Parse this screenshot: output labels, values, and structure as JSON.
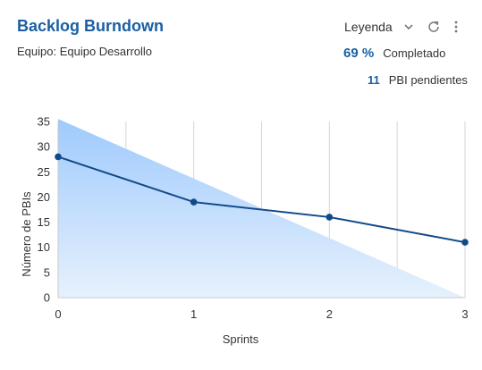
{
  "header": {
    "title": "Backlog Burndown",
    "subtitle": "Equipo: Equipo Desarrollo",
    "legend_label": "Leyenda"
  },
  "stats": {
    "completed_value": "69 %",
    "completed_label": "Completado",
    "pending_value": "11",
    "pending_label": "PBI pendientes"
  },
  "icons": {
    "legend_chevron": "chevron-down-icon",
    "refresh": "refresh-icon",
    "more": "more-vertical-icon"
  },
  "colors": {
    "accent": "#1b5fa3",
    "series_line": "#114a8b",
    "ideal_fill_top": "#9fcafd",
    "ideal_fill_bottom": "#e6f1fd",
    "grid": "#d6d6d6"
  },
  "chart_data": {
    "type": "line",
    "xlabel": "Sprints",
    "ylabel": "Número de PBIs",
    "x_ticks": [
      0,
      1,
      2,
      3
    ],
    "y_ticks": [
      0,
      5,
      10,
      15,
      20,
      25,
      30,
      35
    ],
    "xlim": [
      0,
      3
    ],
    "ylim": [
      0,
      35
    ],
    "grid": "vertical",
    "series": [
      {
        "kind": "area",
        "x": [
          0,
          3
        ],
        "values": [
          35.5,
          0
        ]
      },
      {
        "kind": "line",
        "x": [
          0,
          1,
          2,
          3
        ],
        "values": [
          28,
          19,
          16,
          11
        ]
      }
    ]
  }
}
